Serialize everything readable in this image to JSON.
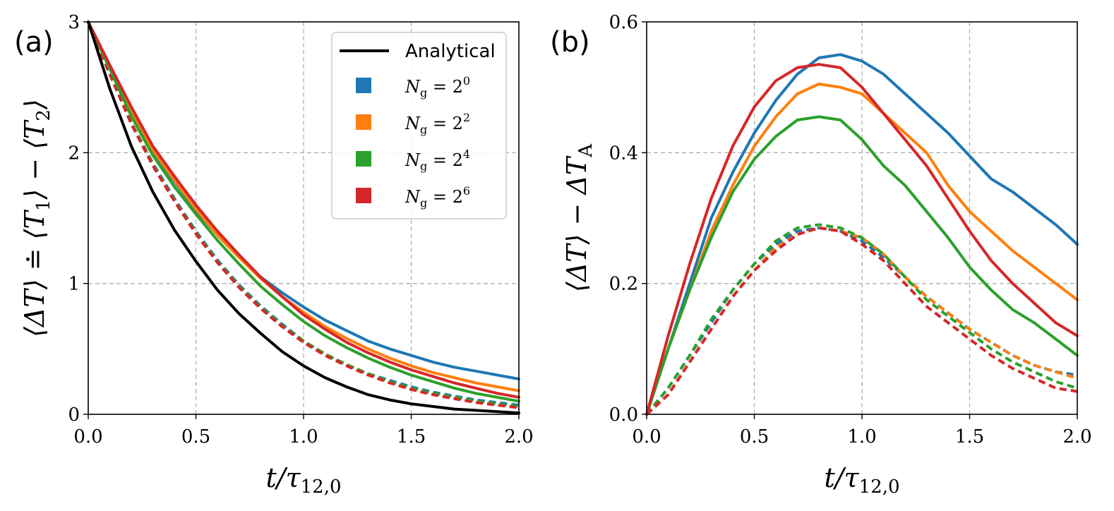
{
  "chart_data": [
    {
      "panel_label": "(a)",
      "type": "line",
      "xlabel": "t/τ12,0",
      "ylabel": "⟨ΔT⟩ ≐ ⟨T1⟩ − ⟨T2⟩",
      "xlim": [
        0,
        2
      ],
      "ylim": [
        0,
        3
      ],
      "xticks": [
        "0.0",
        "0.5",
        "1.0",
        "1.5",
        "2.0"
      ],
      "yticks": [
        "0",
        "1",
        "2",
        "3"
      ],
      "grid": true,
      "legend": {
        "placement": "top-right",
        "entries": [
          "Analytical",
          "Ng = 2⁰",
          "Ng = 2²",
          "Ng = 2⁴",
          "Ng = 2⁶"
        ]
      },
      "series": [
        {
          "name": "Analytical",
          "color": "#000000",
          "style": "solid",
          "x": [
            0,
            0.1,
            0.2,
            0.3,
            0.4,
            0.5,
            0.6,
            0.7,
            0.8,
            0.9,
            1.0,
            1.1,
            1.2,
            1.3,
            1.4,
            1.5,
            1.6,
            1.7,
            1.8,
            1.9,
            2.0
          ],
          "y": [
            3.0,
            2.49,
            2.05,
            1.7,
            1.41,
            1.17,
            0.95,
            0.77,
            0.62,
            0.48,
            0.37,
            0.28,
            0.21,
            0.15,
            0.11,
            0.08,
            0.06,
            0.04,
            0.03,
            0.02,
            0.01
          ]
        },
        {
          "name": "Ng = 2⁰",
          "color": "#1f77b4",
          "style": "solid",
          "x": [
            0,
            0.1,
            0.2,
            0.3,
            0.4,
            0.5,
            0.6,
            0.7,
            0.8,
            0.9,
            1.0,
            1.1,
            1.2,
            1.3,
            1.4,
            1.5,
            1.6,
            1.7,
            1.8,
            1.9,
            2.0
          ],
          "y": [
            3.0,
            2.65,
            2.31,
            2.0,
            1.78,
            1.56,
            1.37,
            1.2,
            1.05,
            0.93,
            0.82,
            0.72,
            0.64,
            0.56,
            0.5,
            0.45,
            0.4,
            0.36,
            0.33,
            0.3,
            0.27
          ]
        },
        {
          "name": "Ng = 2²",
          "color": "#ff7f0e",
          "style": "solid",
          "x": [
            0,
            0.1,
            0.2,
            0.3,
            0.4,
            0.5,
            0.6,
            0.7,
            0.8,
            0.9,
            1.0,
            1.1,
            1.2,
            1.3,
            1.4,
            1.5,
            1.6,
            1.7,
            1.8,
            1.9,
            2.0
          ],
          "y": [
            3.0,
            2.66,
            2.32,
            2.02,
            1.79,
            1.57,
            1.37,
            1.2,
            1.04,
            0.9,
            0.78,
            0.67,
            0.58,
            0.5,
            0.43,
            0.37,
            0.32,
            0.28,
            0.24,
            0.21,
            0.18
          ]
        },
        {
          "name": "Ng = 2⁴",
          "color": "#2ca02c",
          "style": "solid",
          "x": [
            0,
            0.1,
            0.2,
            0.3,
            0.4,
            0.5,
            0.6,
            0.7,
            0.8,
            0.9,
            1.0,
            1.1,
            1.2,
            1.3,
            1.4,
            1.5,
            1.6,
            1.7,
            1.8,
            1.9,
            2.0
          ],
          "y": [
            3.0,
            2.64,
            2.28,
            1.98,
            1.74,
            1.53,
            1.33,
            1.15,
            0.98,
            0.84,
            0.71,
            0.6,
            0.51,
            0.43,
            0.36,
            0.3,
            0.25,
            0.2,
            0.16,
            0.13,
            0.1
          ]
        },
        {
          "name": "Ng = 2⁶",
          "color": "#d62728",
          "style": "solid",
          "x": [
            0,
            0.1,
            0.2,
            0.3,
            0.4,
            0.5,
            0.6,
            0.7,
            0.8,
            0.9,
            1.0,
            1.1,
            1.2,
            1.3,
            1.4,
            1.5,
            1.6,
            1.7,
            1.8,
            1.9,
            2.0
          ],
          "y": [
            3.0,
            2.67,
            2.35,
            2.05,
            1.82,
            1.6,
            1.4,
            1.22,
            1.05,
            0.9,
            0.76,
            0.65,
            0.55,
            0.47,
            0.4,
            0.34,
            0.29,
            0.24,
            0.2,
            0.16,
            0.13
          ]
        },
        {
          "name": "Ng = 2⁰ (dashed)",
          "color": "#1f77b4",
          "style": "dashed",
          "x": [
            0,
            0.1,
            0.2,
            0.3,
            0.4,
            0.5,
            0.6,
            0.7,
            0.8,
            0.9,
            1.0,
            1.1,
            1.2,
            1.3,
            1.4,
            1.5,
            1.6,
            1.7,
            1.8,
            1.9,
            2.0
          ],
          "y": [
            3.0,
            2.6,
            2.23,
            1.92,
            1.65,
            1.4,
            1.18,
            0.99,
            0.83,
            0.69,
            0.56,
            0.46,
            0.38,
            0.31,
            0.26,
            0.21,
            0.17,
            0.14,
            0.11,
            0.09,
            0.07
          ]
        },
        {
          "name": "Ng = 2² (dashed)",
          "color": "#ff7f0e",
          "style": "dashed",
          "x": [
            0,
            0.1,
            0.2,
            0.3,
            0.4,
            0.5,
            0.6,
            0.7,
            0.8,
            0.9,
            1.0,
            1.1,
            1.2,
            1.3,
            1.4,
            1.5,
            1.6,
            1.7,
            1.8,
            1.9,
            2.0
          ],
          "y": [
            3.0,
            2.6,
            2.23,
            1.91,
            1.64,
            1.39,
            1.17,
            0.98,
            0.82,
            0.68,
            0.56,
            0.46,
            0.38,
            0.31,
            0.25,
            0.2,
            0.16,
            0.13,
            0.1,
            0.08,
            0.06
          ]
        },
        {
          "name": "Ng = 2⁴ (dashed)",
          "color": "#2ca02c",
          "style": "dashed",
          "x": [
            0,
            0.1,
            0.2,
            0.3,
            0.4,
            0.5,
            0.6,
            0.7,
            0.8,
            0.9,
            1.0,
            1.1,
            1.2,
            1.3,
            1.4,
            1.5,
            1.6,
            1.7,
            1.8,
            1.9,
            2.0
          ],
          "y": [
            3.0,
            2.6,
            2.23,
            1.91,
            1.64,
            1.39,
            1.17,
            0.98,
            0.82,
            0.68,
            0.56,
            0.46,
            0.38,
            0.31,
            0.25,
            0.2,
            0.16,
            0.13,
            0.1,
            0.08,
            0.06
          ]
        },
        {
          "name": "Ng = 2⁶ (dashed)",
          "color": "#d62728",
          "style": "dashed",
          "x": [
            0,
            0.1,
            0.2,
            0.3,
            0.4,
            0.5,
            0.6,
            0.7,
            0.8,
            0.9,
            1.0,
            1.1,
            1.2,
            1.3,
            1.4,
            1.5,
            1.6,
            1.7,
            1.8,
            1.9,
            2.0
          ],
          "y": [
            3.0,
            2.6,
            2.22,
            1.9,
            1.63,
            1.38,
            1.16,
            0.97,
            0.81,
            0.67,
            0.55,
            0.45,
            0.37,
            0.3,
            0.24,
            0.19,
            0.15,
            0.12,
            0.09,
            0.07,
            0.05
          ]
        }
      ]
    },
    {
      "panel_label": "(b)",
      "type": "line",
      "xlabel": "t/τ12,0",
      "ylabel": "⟨ΔT⟩ − ΔTA",
      "xlim": [
        0,
        2
      ],
      "ylim": [
        0,
        0.6
      ],
      "xticks": [
        "0.0",
        "0.5",
        "1.0",
        "1.5",
        "2.0"
      ],
      "yticks": [
        "0.0",
        "0.2",
        "0.4",
        "0.6"
      ],
      "grid": true,
      "series": [
        {
          "name": "Ng = 2⁰",
          "color": "#1f77b4",
          "style": "solid",
          "x": [
            0,
            0.1,
            0.2,
            0.3,
            0.4,
            0.5,
            0.6,
            0.7,
            0.8,
            0.9,
            1.0,
            1.1,
            1.2,
            1.3,
            1.4,
            1.5,
            1.6,
            1.7,
            1.8,
            1.9,
            2.0
          ],
          "y": [
            0,
            0.1,
            0.2,
            0.3,
            0.37,
            0.43,
            0.48,
            0.52,
            0.545,
            0.55,
            0.54,
            0.52,
            0.49,
            0.46,
            0.43,
            0.395,
            0.36,
            0.34,
            0.315,
            0.29,
            0.26
          ]
        },
        {
          "name": "Ng = 2²",
          "color": "#ff7f0e",
          "style": "solid",
          "x": [
            0,
            0.1,
            0.2,
            0.3,
            0.4,
            0.5,
            0.6,
            0.7,
            0.8,
            0.9,
            1.0,
            1.1,
            1.2,
            1.3,
            1.4,
            1.5,
            1.6,
            1.7,
            1.8,
            1.9,
            2.0
          ],
          "y": [
            0,
            0.1,
            0.19,
            0.28,
            0.35,
            0.41,
            0.455,
            0.49,
            0.505,
            0.5,
            0.49,
            0.46,
            0.43,
            0.4,
            0.35,
            0.31,
            0.28,
            0.25,
            0.225,
            0.2,
            0.175
          ]
        },
        {
          "name": "Ng = 2⁴",
          "color": "#2ca02c",
          "style": "solid",
          "x": [
            0,
            0.1,
            0.2,
            0.3,
            0.4,
            0.5,
            0.6,
            0.7,
            0.8,
            0.9,
            1.0,
            1.1,
            1.2,
            1.3,
            1.4,
            1.5,
            1.6,
            1.7,
            1.8,
            1.9,
            2.0
          ],
          "y": [
            0,
            0.1,
            0.19,
            0.27,
            0.34,
            0.39,
            0.425,
            0.45,
            0.455,
            0.45,
            0.42,
            0.38,
            0.35,
            0.31,
            0.27,
            0.225,
            0.19,
            0.16,
            0.14,
            0.115,
            0.09
          ]
        },
        {
          "name": "Ng = 2⁶",
          "color": "#d62728",
          "style": "solid",
          "x": [
            0,
            0.1,
            0.2,
            0.3,
            0.4,
            0.5,
            0.6,
            0.7,
            0.8,
            0.9,
            1.0,
            1.1,
            1.2,
            1.3,
            1.4,
            1.5,
            1.6,
            1.7,
            1.8,
            1.9,
            2.0
          ],
          "y": [
            0,
            0.12,
            0.23,
            0.33,
            0.41,
            0.47,
            0.51,
            0.53,
            0.535,
            0.53,
            0.5,
            0.46,
            0.42,
            0.38,
            0.33,
            0.28,
            0.235,
            0.2,
            0.17,
            0.14,
            0.12
          ]
        },
        {
          "name": "Ng = 2⁰ (dashed)",
          "color": "#1f77b4",
          "style": "dashed",
          "x": [
            0,
            0.1,
            0.2,
            0.3,
            0.4,
            0.5,
            0.6,
            0.7,
            0.8,
            0.9,
            1.0,
            1.1,
            1.2,
            1.3,
            1.4,
            1.5,
            1.6,
            1.7,
            1.8,
            1.9,
            2.0
          ],
          "y": [
            0,
            0.04,
            0.09,
            0.14,
            0.19,
            0.23,
            0.26,
            0.28,
            0.285,
            0.28,
            0.265,
            0.24,
            0.21,
            0.18,
            0.155,
            0.13,
            0.11,
            0.09,
            0.075,
            0.065,
            0.06
          ]
        },
        {
          "name": "Ng = 2² (dashed)",
          "color": "#ff7f0e",
          "style": "dashed",
          "x": [
            0,
            0.1,
            0.2,
            0.3,
            0.4,
            0.5,
            0.6,
            0.7,
            0.8,
            0.9,
            1.0,
            1.1,
            1.2,
            1.3,
            1.4,
            1.5,
            1.6,
            1.7,
            1.8,
            1.9,
            2.0
          ],
          "y": [
            0,
            0.03,
            0.08,
            0.13,
            0.18,
            0.22,
            0.255,
            0.275,
            0.285,
            0.28,
            0.27,
            0.245,
            0.21,
            0.18,
            0.155,
            0.13,
            0.11,
            0.09,
            0.075,
            0.065,
            0.055
          ]
        },
        {
          "name": "Ng = 2⁴ (dashed)",
          "color": "#2ca02c",
          "style": "dashed",
          "x": [
            0,
            0.1,
            0.2,
            0.3,
            0.4,
            0.5,
            0.6,
            0.7,
            0.8,
            0.9,
            1.0,
            1.1,
            1.2,
            1.3,
            1.4,
            1.5,
            1.6,
            1.7,
            1.8,
            1.9,
            2.0
          ],
          "y": [
            0,
            0.04,
            0.09,
            0.145,
            0.19,
            0.23,
            0.265,
            0.285,
            0.29,
            0.285,
            0.27,
            0.245,
            0.21,
            0.175,
            0.15,
            0.125,
            0.1,
            0.08,
            0.065,
            0.05,
            0.04
          ]
        },
        {
          "name": "Ng = 2⁶ (dashed)",
          "color": "#d62728",
          "style": "dashed",
          "x": [
            0,
            0.1,
            0.2,
            0.3,
            0.4,
            0.5,
            0.6,
            0.7,
            0.8,
            0.9,
            1.0,
            1.1,
            1.2,
            1.3,
            1.4,
            1.5,
            1.6,
            1.7,
            1.8,
            1.9,
            2.0
          ],
          "y": [
            0,
            0.03,
            0.08,
            0.13,
            0.18,
            0.22,
            0.25,
            0.275,
            0.285,
            0.28,
            0.26,
            0.235,
            0.2,
            0.165,
            0.14,
            0.115,
            0.09,
            0.07,
            0.055,
            0.04,
            0.035
          ]
        }
      ]
    }
  ]
}
